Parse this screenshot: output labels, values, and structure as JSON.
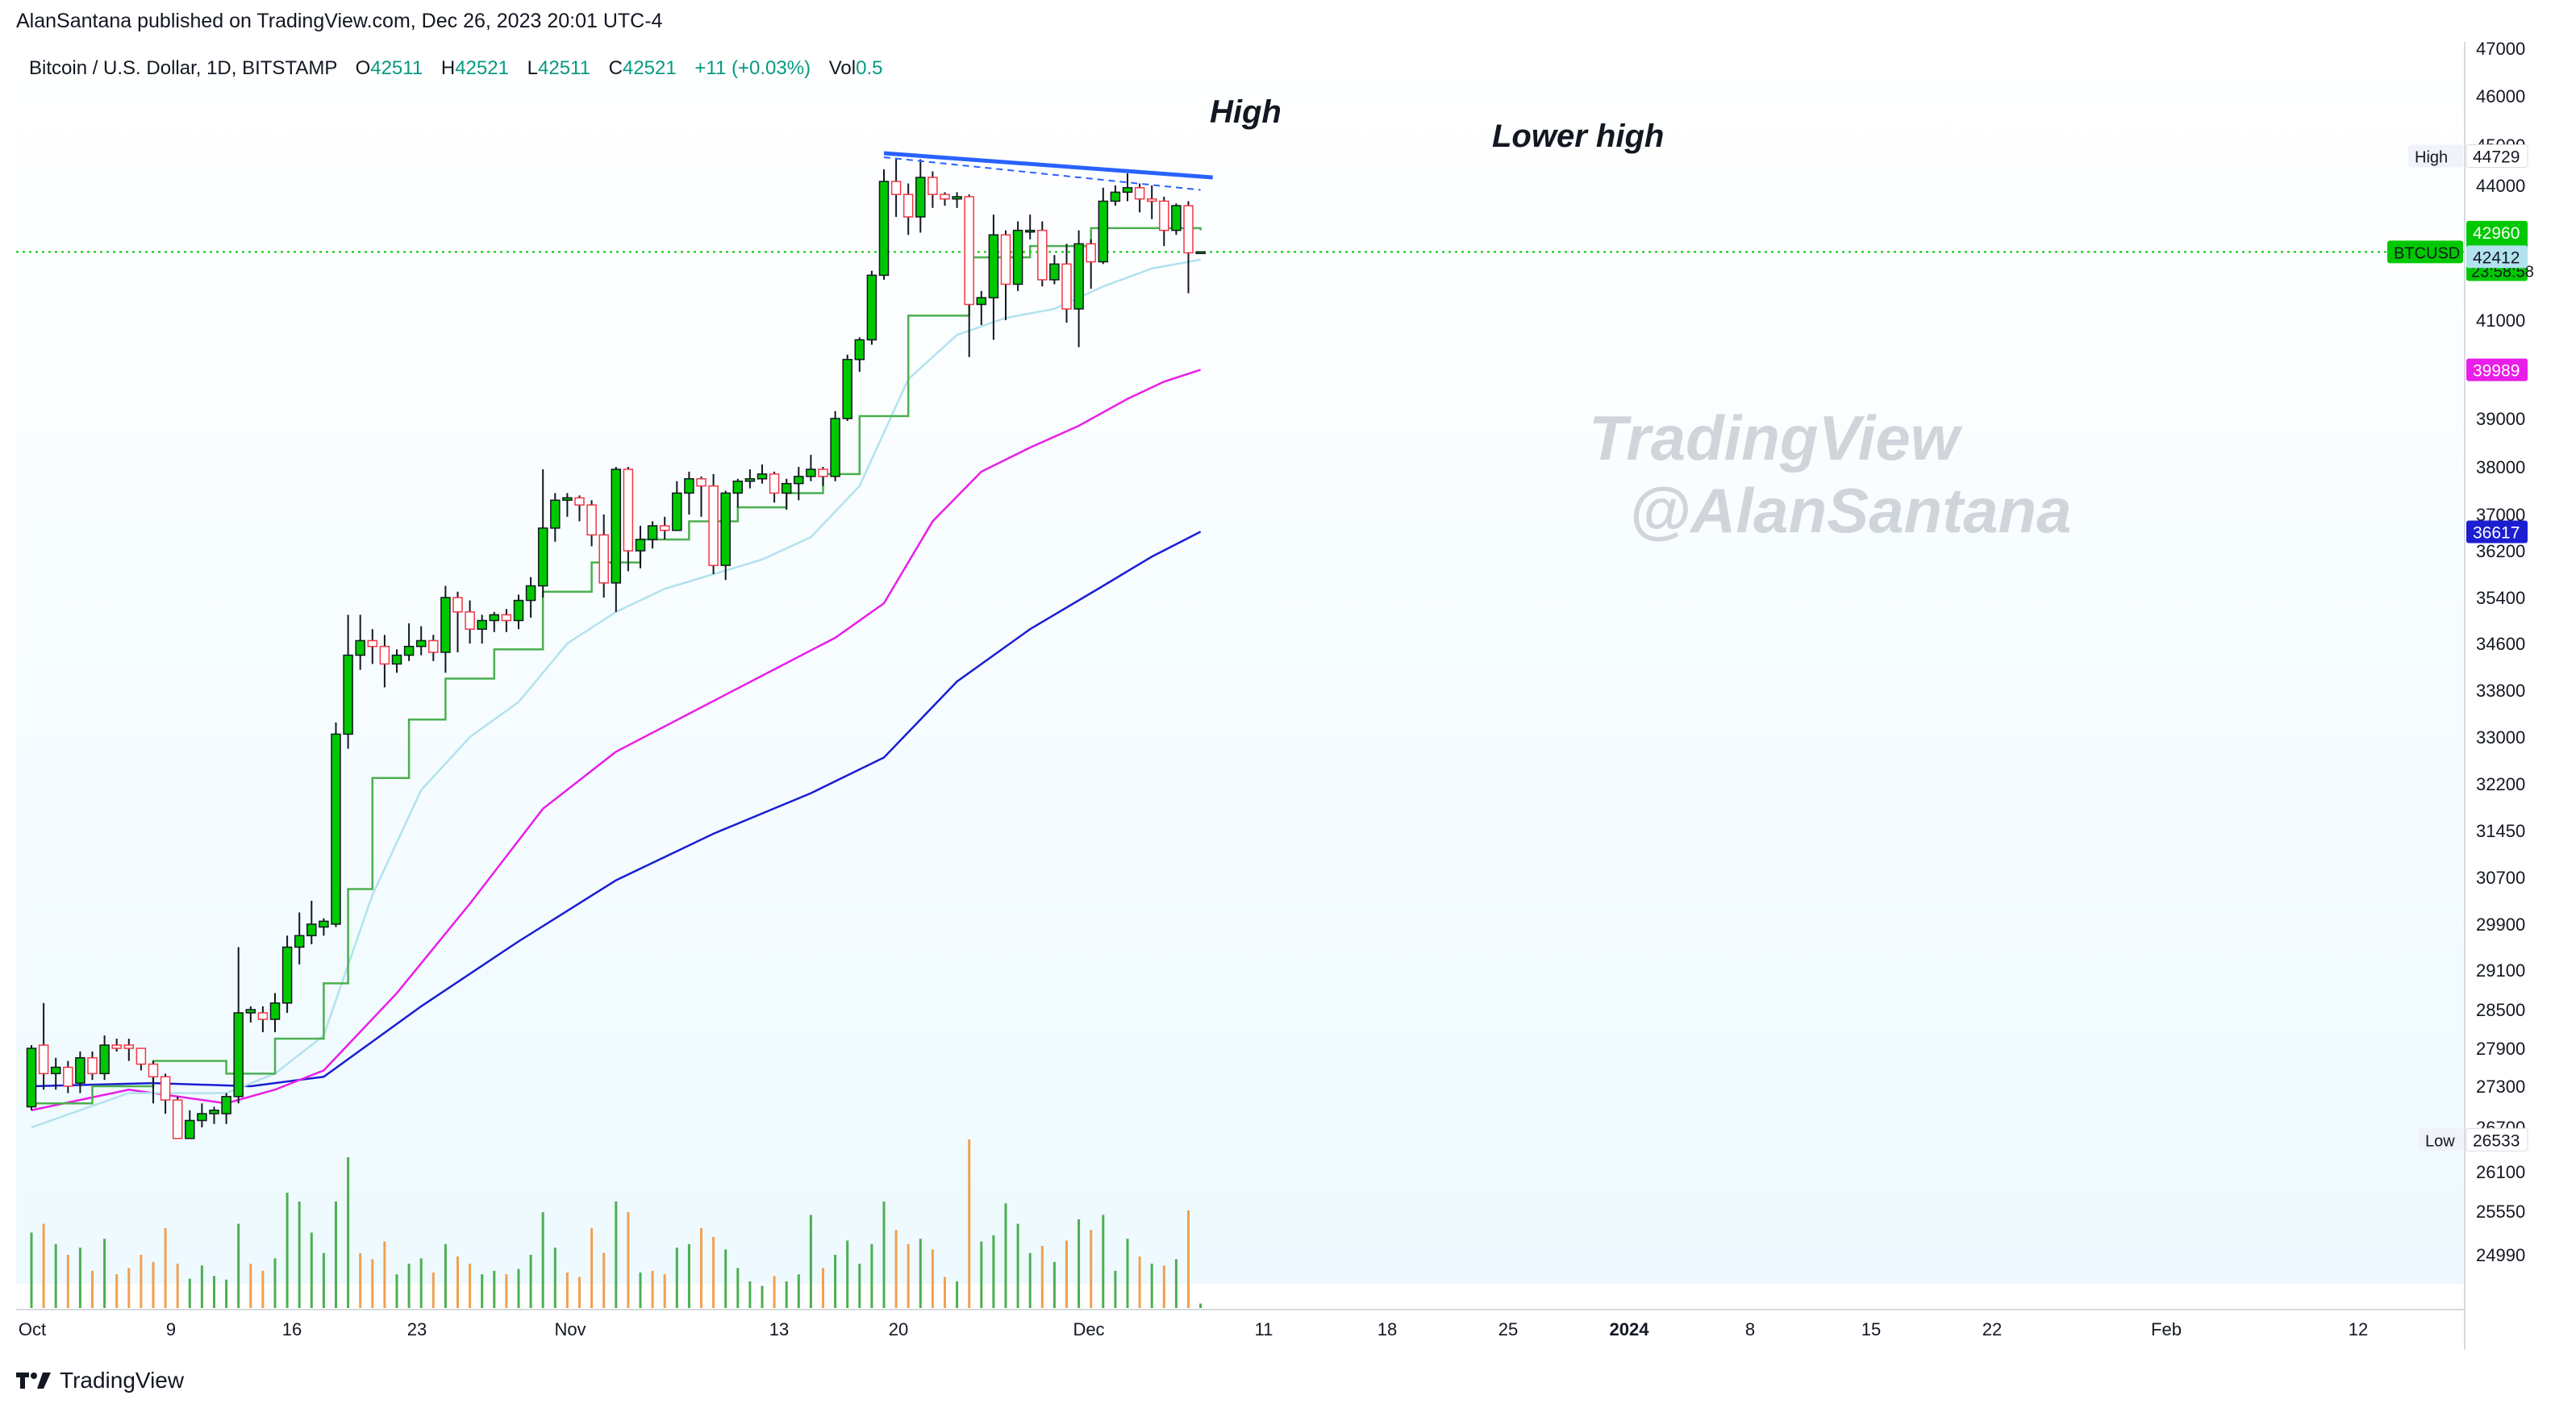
{
  "publisher_line": "AlanSantana published on TradingView.com, Dec 26, 2023 20:01 UTC-4",
  "brand": "TradingView",
  "watermark": {
    "line1": "TradingView",
    "line2": "@AlanSantana"
  },
  "colors": {
    "up": "#00c800",
    "down": "#f23645",
    "ma_fast": "#4caf50",
    "ma_light": "#b2e2ee",
    "ma_magenta": "#e91ee8",
    "ma_blue": "#1b1ed1",
    "trendline": "#2962ff",
    "vol_up": "#4caf50",
    "vol_down": "#f0a050",
    "background_tint": "#eefaff"
  },
  "chart_data": {
    "type": "candlestick",
    "symbol": "Bitcoin / U.S. Dollar, 1D, BITSTAMP",
    "ohlc_header": {
      "o_label": "O",
      "o": "42511",
      "h_label": "H",
      "h": "42521",
      "l_label": "L",
      "l": "42511",
      "c_label": "C",
      "c": "42521",
      "change": "+11 (+0.03%)",
      "vol_label": "Vol",
      "vol": "0.5"
    },
    "x_axis_labels": [
      "Oct",
      "9",
      "16",
      "23",
      "Nov",
      "13",
      "20",
      "Dec",
      "11",
      "18",
      "25",
      "2024",
      "8",
      "15",
      "22",
      "Feb",
      "12"
    ],
    "y_axis_ticks": [
      "47000",
      "46000",
      "45000",
      "44000",
      "41000",
      "39000",
      "38000",
      "37000",
      "36200",
      "35400",
      "34600",
      "33800",
      "33000",
      "32200",
      "31450",
      "30700",
      "29900",
      "29100",
      "28500",
      "27900",
      "27300",
      "26700",
      "26100",
      "25550",
      "24990"
    ],
    "price_labels": [
      {
        "text": "High",
        "value": "44729",
        "kind": "high"
      },
      {
        "text": "",
        "value": "42960",
        "kind": "ma_fast"
      },
      {
        "text": "BTCUSD",
        "value": "42521",
        "timer": "23:58:58",
        "kind": "last"
      },
      {
        "text": "",
        "value": "42412",
        "kind": "ma_light"
      },
      {
        "text": "",
        "value": "39989",
        "kind": "ma_magenta"
      },
      {
        "text": "",
        "value": "36617",
        "kind": "ma_blue"
      },
      {
        "text": "Low",
        "value": "26533",
        "kind": "low"
      }
    ],
    "annotations": [
      "High",
      "Lower high"
    ],
    "candles": [
      [
        27000,
        27900,
        26950,
        27950
      ],
      [
        27950,
        27500,
        27250,
        28600
      ],
      [
        27500,
        27600,
        27250,
        27750
      ],
      [
        27600,
        27300,
        27200,
        27700
      ],
      [
        27350,
        27750,
        27200,
        27850
      ],
      [
        27750,
        27500,
        27400,
        27850
      ],
      [
        27500,
        27950,
        27400,
        28100
      ],
      [
        27950,
        27900,
        27850,
        28050
      ],
      [
        27950,
        27900,
        27700,
        28050
      ],
      [
        27900,
        27650,
        27550,
        27900
      ],
      [
        27650,
        27450,
        27050,
        27700
      ],
      [
        27450,
        27100,
        26900,
        27500
      ],
      [
        27100,
        26550,
        26550,
        27150
      ],
      [
        26550,
        26800,
        26550,
        26950
      ],
      [
        26800,
        26900,
        26700,
        27050
      ],
      [
        26900,
        26950,
        26750,
        27000
      ],
      [
        26900,
        27150,
        26750,
        27200
      ],
      [
        27150,
        28450,
        27050,
        29500
      ],
      [
        28450,
        28500,
        28300,
        28550
      ],
      [
        28450,
        28350,
        28150,
        28550
      ],
      [
        28350,
        28600,
        28150,
        28750
      ],
      [
        28600,
        29500,
        28450,
        29700
      ],
      [
        29500,
        29700,
        29200,
        30100
      ],
      [
        29700,
        29900,
        29550,
        30300
      ],
      [
        29850,
        29950,
        29700,
        30000
      ],
      [
        29900,
        33050,
        29850,
        33250
      ],
      [
        33050,
        34400,
        32800,
        35100
      ],
      [
        34400,
        34650,
        34150,
        35100
      ],
      [
        34650,
        34550,
        34250,
        34850
      ],
      [
        34550,
        34250,
        33850,
        34750
      ],
      [
        34250,
        34400,
        34100,
        34500
      ],
      [
        34400,
        34550,
        34300,
        34950
      ],
      [
        34550,
        34650,
        34400,
        34900
      ],
      [
        34650,
        34450,
        34300,
        34750
      ],
      [
        34450,
        35400,
        34100,
        35600
      ],
      [
        35400,
        35150,
        34450,
        35500
      ],
      [
        35150,
        34850,
        34600,
        35350
      ],
      [
        34850,
        35000,
        34600,
        35100
      ],
      [
        35000,
        35100,
        34800,
        35150
      ],
      [
        35100,
        35000,
        34800,
        35200
      ],
      [
        35000,
        35350,
        34850,
        35450
      ],
      [
        35350,
        35600,
        35050,
        35750
      ],
      [
        35600,
        36700,
        35400,
        37950
      ],
      [
        36700,
        37300,
        36400,
        37450
      ],
      [
        37300,
        37350,
        36950,
        37450
      ],
      [
        37350,
        37200,
        36850,
        37400
      ],
      [
        37200,
        36550,
        36300,
        37300
      ],
      [
        36550,
        35650,
        35400,
        37000
      ],
      [
        35650,
        37950,
        35150,
        38000
      ],
      [
        37950,
        36200,
        35850,
        38000
      ],
      [
        36200,
        36450,
        35900,
        36750
      ],
      [
        36450,
        36750,
        36250,
        36850
      ],
      [
        36750,
        36650,
        36450,
        36950
      ],
      [
        36650,
        37450,
        36650,
        37700
      ],
      [
        37450,
        37750,
        37000,
        37900
      ],
      [
        37750,
        37600,
        36950,
        37800
      ],
      [
        37600,
        35950,
        35800,
        37850
      ],
      [
        35950,
        37450,
        35700,
        37500
      ],
      [
        37450,
        37700,
        37150,
        37750
      ],
      [
        37700,
        37750,
        37550,
        37950
      ],
      [
        37750,
        37850,
        37650,
        38050
      ],
      [
        37850,
        37450,
        37250,
        37900
      ],
      [
        37450,
        37650,
        37100,
        37750
      ],
      [
        37650,
        37800,
        37300,
        38000
      ],
      [
        37800,
        37950,
        37700,
        38250
      ],
      [
        37950,
        37800,
        37600,
        38000
      ],
      [
        37800,
        39000,
        37700,
        39150
      ],
      [
        39000,
        40200,
        38950,
        40300
      ],
      [
        40200,
        40600,
        39950,
        40650
      ],
      [
        40600,
        42000,
        40500,
        42100
      ],
      [
        42000,
        44100,
        41900,
        44400
      ],
      [
        44100,
        43800,
        43300,
        44650
      ],
      [
        43800,
        43300,
        42900,
        44050
      ],
      [
        43300,
        44200,
        42950,
        44650
      ],
      [
        44200,
        43800,
        43500,
        44350
      ],
      [
        43800,
        43700,
        43550,
        43850
      ],
      [
        43700,
        43750,
        43500,
        43850
      ],
      [
        43750,
        41350,
        40250,
        43800
      ],
      [
        41350,
        41500,
        40900,
        41650
      ],
      [
        41500,
        42900,
        40600,
        43350
      ],
      [
        42900,
        41800,
        41000,
        43000
      ],
      [
        41800,
        43000,
        41650,
        43200
      ],
      [
        43000,
        43000,
        42800,
        43350
      ],
      [
        43000,
        41900,
        41750,
        43200
      ],
      [
        41900,
        42250,
        41800,
        42450
      ],
      [
        42250,
        41250,
        40950,
        42700
      ],
      [
        41250,
        42700,
        40450,
        43000
      ],
      [
        42700,
        42300,
        41700,
        42800
      ],
      [
        42300,
        43650,
        42250,
        43950
      ],
      [
        43650,
        43850,
        43550,
        44000
      ],
      [
        43850,
        43950,
        43650,
        44300
      ],
      [
        43950,
        43700,
        43400,
        44050
      ],
      [
        43700,
        43650,
        43250,
        44000
      ],
      [
        43650,
        43000,
        42650,
        43750
      ],
      [
        43000,
        43550,
        42900,
        43600
      ],
      [
        43550,
        42500,
        41600,
        43650
      ],
      [
        42511,
        42521,
        42511,
        42521
      ]
    ],
    "volume": [
      [
        0.85,
        1
      ],
      [
        0.95,
        0
      ],
      [
        0.72,
        1
      ],
      [
        0.6,
        0
      ],
      [
        0.68,
        1
      ],
      [
        0.42,
        0
      ],
      [
        0.78,
        1
      ],
      [
        0.38,
        0
      ],
      [
        0.45,
        0
      ],
      [
        0.6,
        0
      ],
      [
        0.52,
        0
      ],
      [
        0.9,
        0
      ],
      [
        0.5,
        0
      ],
      [
        0.33,
        1
      ],
      [
        0.48,
        1
      ],
      [
        0.36,
        1
      ],
      [
        0.32,
        1
      ],
      [
        0.95,
        1
      ],
      [
        0.5,
        0
      ],
      [
        0.42,
        0
      ],
      [
        0.56,
        1
      ],
      [
        1.3,
        1
      ],
      [
        1.2,
        1
      ],
      [
        0.85,
        1
      ],
      [
        0.62,
        1
      ],
      [
        1.2,
        1
      ],
      [
        1.7,
        1
      ],
      [
        0.62,
        0
      ],
      [
        0.55,
        0
      ],
      [
        0.75,
        0
      ],
      [
        0.38,
        1
      ],
      [
        0.5,
        1
      ],
      [
        0.56,
        1
      ],
      [
        0.4,
        0
      ],
      [
        0.72,
        1
      ],
      [
        0.58,
        0
      ],
      [
        0.5,
        0
      ],
      [
        0.38,
        1
      ],
      [
        0.42,
        1
      ],
      [
        0.38,
        0
      ],
      [
        0.44,
        1
      ],
      [
        0.6,
        1
      ],
      [
        1.08,
        1
      ],
      [
        0.68,
        1
      ],
      [
        0.4,
        0
      ],
      [
        0.35,
        0
      ],
      [
        0.9,
        0
      ],
      [
        0.62,
        0
      ],
      [
        1.2,
        1
      ],
      [
        1.08,
        0
      ],
      [
        0.4,
        1
      ],
      [
        0.42,
        0
      ],
      [
        0.38,
        0
      ],
      [
        0.68,
        1
      ],
      [
        0.72,
        1
      ],
      [
        0.9,
        0
      ],
      [
        0.8,
        0
      ],
      [
        0.66,
        1
      ],
      [
        0.45,
        1
      ],
      [
        0.3,
        1
      ],
      [
        0.25,
        1
      ],
      [
        0.36,
        0
      ],
      [
        0.3,
        1
      ],
      [
        0.38,
        1
      ],
      [
        1.05,
        1
      ],
      [
        0.45,
        0
      ],
      [
        0.6,
        1
      ],
      [
        0.76,
        1
      ],
      [
        0.5,
        1
      ],
      [
        0.72,
        1
      ],
      [
        1.2,
        1
      ],
      [
        0.88,
        0
      ],
      [
        0.72,
        0
      ],
      [
        0.78,
        1
      ],
      [
        0.66,
        0
      ],
      [
        0.35,
        0
      ],
      [
        0.3,
        1
      ],
      [
        1.9,
        0
      ],
      [
        0.75,
        1
      ],
      [
        0.82,
        1
      ],
      [
        1.18,
        1
      ],
      [
        0.95,
        1
      ],
      [
        0.62,
        1
      ],
      [
        0.7,
        0
      ],
      [
        0.52,
        1
      ],
      [
        0.76,
        0
      ],
      [
        1.0,
        1
      ],
      [
        0.88,
        0
      ],
      [
        1.05,
        1
      ],
      [
        0.42,
        1
      ],
      [
        0.78,
        1
      ],
      [
        0.58,
        0
      ],
      [
        0.5,
        1
      ],
      [
        0.48,
        0
      ],
      [
        0.55,
        1
      ],
      [
        1.1,
        0
      ],
      [
        0.05,
        1
      ]
    ],
    "ma_fast": [
      [
        0,
        27050
      ],
      [
        5,
        27300
      ],
      [
        10,
        27700
      ],
      [
        16,
        27500
      ],
      [
        20,
        28050
      ],
      [
        24,
        28900
      ],
      [
        26,
        30500
      ],
      [
        28,
        32300
      ],
      [
        31,
        33300
      ],
      [
        34,
        34000
      ],
      [
        38,
        34500
      ],
      [
        42,
        35500
      ],
      [
        46,
        36000
      ],
      [
        50,
        36450
      ],
      [
        54,
        36850
      ],
      [
        58,
        37150
      ],
      [
        62,
        37450
      ],
      [
        65,
        37850
      ],
      [
        68,
        39050
      ],
      [
        72,
        41100
      ],
      [
        77,
        42400
      ],
      [
        82,
        42650
      ],
      [
        87,
        43050
      ],
      [
        93,
        43050
      ],
      [
        96,
        43000
      ]
    ],
    "ma_light": [
      [
        0,
        26700
      ],
      [
        8,
        27200
      ],
      [
        16,
        27200
      ],
      [
        20,
        27500
      ],
      [
        24,
        28100
      ],
      [
        28,
        30400
      ],
      [
        32,
        32100
      ],
      [
        36,
        33000
      ],
      [
        40,
        33600
      ],
      [
        44,
        34600
      ],
      [
        48,
        35150
      ],
      [
        52,
        35550
      ],
      [
        56,
        35800
      ],
      [
        60,
        36050
      ],
      [
        64,
        36500
      ],
      [
        68,
        37600
      ],
      [
        72,
        39800
      ],
      [
        76,
        40700
      ],
      [
        80,
        41050
      ],
      [
        84,
        41250
      ],
      [
        88,
        41750
      ],
      [
        92,
        42150
      ],
      [
        96,
        42350
      ]
    ],
    "ma_magenta": [
      [
        0,
        26950
      ],
      [
        8,
        27250
      ],
      [
        16,
        27050
      ],
      [
        20,
        27250
      ],
      [
        24,
        27550
      ],
      [
        30,
        28750
      ],
      [
        36,
        30250
      ],
      [
        42,
        31800
      ],
      [
        48,
        32750
      ],
      [
        54,
        33400
      ],
      [
        60,
        34050
      ],
      [
        66,
        34700
      ],
      [
        70,
        35300
      ],
      [
        74,
        36850
      ],
      [
        78,
        37900
      ],
      [
        82,
        38400
      ],
      [
        86,
        38850
      ],
      [
        90,
        39400
      ],
      [
        93,
        39750
      ],
      [
        96,
        39990
      ]
    ],
    "ma_blue": [
      [
        0,
        27300
      ],
      [
        10,
        27350
      ],
      [
        18,
        27300
      ],
      [
        24,
        27450
      ],
      [
        32,
        28550
      ],
      [
        40,
        29600
      ],
      [
        48,
        30650
      ],
      [
        56,
        31400
      ],
      [
        64,
        32050
      ],
      [
        70,
        32650
      ],
      [
        76,
        33950
      ],
      [
        82,
        34850
      ],
      [
        88,
        35600
      ],
      [
        92,
        36100
      ],
      [
        96,
        36620
      ]
    ],
    "trendline_solid": [
      [
        70,
        44800
      ],
      [
        97,
        44200
      ]
    ],
    "trendline_dashed": [
      [
        70,
        44700
      ],
      [
        96,
        43900
      ]
    ]
  }
}
